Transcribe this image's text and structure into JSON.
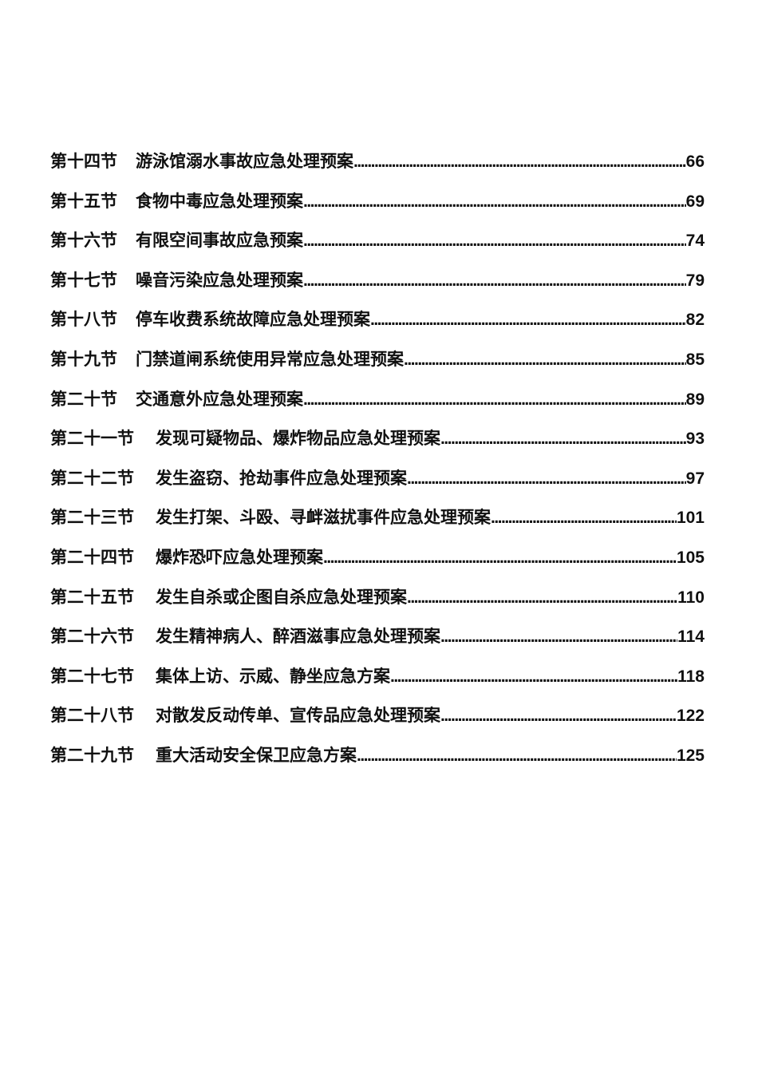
{
  "page": {
    "toc": {
      "entries": [
        {
          "section": "第十四节",
          "title": "游泳馆溺水事故应急处理预案",
          "page": "66"
        },
        {
          "section": "第十五节",
          "title": "食物中毒应急处理预案",
          "page": "69"
        },
        {
          "section": "第十六节",
          "title": "有限空间事故应急预案",
          "page": "74"
        },
        {
          "section": "第十七节",
          "title": "噪音污染应急处理预案",
          "page": "79"
        },
        {
          "section": "第十八节",
          "title": "停车收费系统故障应急处理预案",
          "page": "82"
        },
        {
          "section": "第十九节",
          "title": "门禁道闸系统使用异常应急处理预案",
          "page": "85"
        },
        {
          "section": "第二十节",
          "title": "交通意外应急处理预案",
          "page": "89"
        },
        {
          "section": "第二十一节",
          "title": "发现可疑物品、爆炸物品应急处理预案",
          "page": "93"
        },
        {
          "section": "第二十二节",
          "title": "发生盗窃、抢劫事件应急处理预案",
          "page": "97"
        },
        {
          "section": "第二十三节",
          "title": "发生打架、斗殴、寻衅滋扰事件应急处理预案",
          "page": "101"
        },
        {
          "section": "第二十四节",
          "title": "爆炸恐吓应急处理预案",
          "page": "105"
        },
        {
          "section": "第二十五节",
          "title": "发生自杀或企图自杀应急处理预案",
          "page": "110"
        },
        {
          "section": "第二十六节",
          "title": "发生精神病人、醉酒滋事应急处理预案",
          "page": "114"
        },
        {
          "section": "第二十七节",
          "title": "集体上访、示威、静坐应急方案",
          "page": "118"
        },
        {
          "section": "第二十八节",
          "title": "对散发反动传单、宣传品应急处理预案",
          "page": "122"
        },
        {
          "section": "第二十九节",
          "title": "重大活动安全保卫应急方案",
          "page": "125"
        }
      ]
    }
  }
}
